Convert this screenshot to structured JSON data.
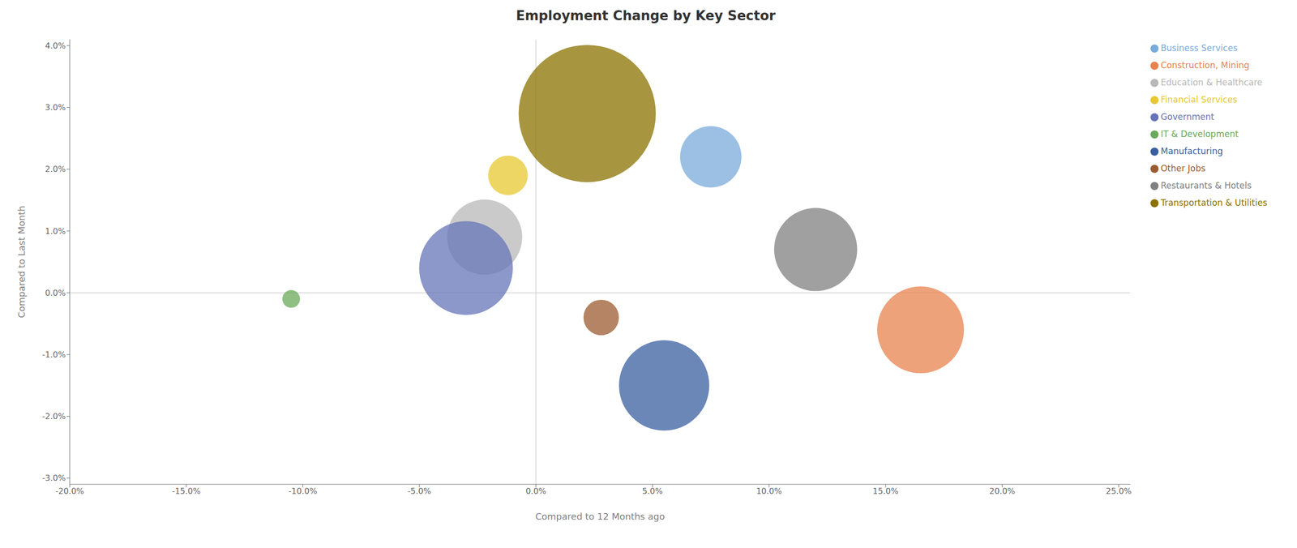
{
  "chart_data": {
    "type": "scatter",
    "title": "Employment Change by Key Sector",
    "xlabel": "Compared to 12 Months ago",
    "ylabel": "Compared to Last Month",
    "xlim": [
      -0.2,
      0.255
    ],
    "ylim": [
      -0.031,
      0.041
    ],
    "xticks": [
      {
        "value": -0.2,
        "label": "-20.0%"
      },
      {
        "value": -0.15,
        "label": "-15.0%"
      },
      {
        "value": -0.1,
        "label": "-10.0%"
      },
      {
        "value": -0.05,
        "label": "-5.0%"
      },
      {
        "value": 0.0,
        "label": "0.0%"
      },
      {
        "value": 0.05,
        "label": "5.0%"
      },
      {
        "value": 0.1,
        "label": "10.0%"
      },
      {
        "value": 0.15,
        "label": "15.0%"
      },
      {
        "value": 0.2,
        "label": "20.0%"
      },
      {
        "value": 0.25,
        "label": "25.0%"
      }
    ],
    "yticks": [
      {
        "value": -0.03,
        "label": "-3.0%"
      },
      {
        "value": -0.02,
        "label": "-2.0%"
      },
      {
        "value": -0.01,
        "label": "-1.0%"
      },
      {
        "value": 0.0,
        "label": "0.0%"
      },
      {
        "value": 0.01,
        "label": "1.0%"
      },
      {
        "value": 0.02,
        "label": "2.0%"
      },
      {
        "value": 0.03,
        "label": "3.0%"
      },
      {
        "value": 0.04,
        "label": "4.0%"
      }
    ],
    "grid": false,
    "legend": "right",
    "series": [
      {
        "name": "Business Services",
        "color": "#7aabda",
        "x": [
          0.075
        ],
        "values": [
          0.022
        ],
        "size": [
          6000
        ]
      },
      {
        "name": "Construction, Mining",
        "color": "#e8834d",
        "x": [
          0.165
        ],
        "values": [
          -0.006
        ],
        "size": [
          12000
        ]
      },
      {
        "name": "Education & Healthcare",
        "color": "#b8b8b8",
        "x": [
          -0.022
        ],
        "values": [
          0.009
        ],
        "size": [
          9000
        ]
      },
      {
        "name": "Financial Services",
        "color": "#e8c830",
        "x": [
          -0.012
        ],
        "values": [
          0.019
        ],
        "size": [
          2500
        ]
      },
      {
        "name": "Government",
        "color": "#6674b8",
        "x": [
          -0.03
        ],
        "values": [
          0.004
        ],
        "size": [
          14000
        ]
      },
      {
        "name": "IT & Development",
        "color": "#6aaa5a",
        "x": [
          -0.105
        ],
        "values": [
          -0.001
        ],
        "size": [
          500
        ]
      },
      {
        "name": "Manufacturing",
        "color": "#3a5fa0",
        "x": [
          0.055
        ],
        "values": [
          -0.015
        ],
        "size": [
          13000
        ]
      },
      {
        "name": "Other Jobs",
        "color": "#9b5b30",
        "x": [
          0.028
        ],
        "values": [
          -0.004
        ],
        "size": [
          2000
        ]
      },
      {
        "name": "Restaurants & Hotels",
        "color": "#808080",
        "x": [
          0.12
        ],
        "values": [
          0.007
        ],
        "size": [
          11000
        ]
      },
      {
        "name": "Transportation & Utilities",
        "color": "#8b7200",
        "x": [
          0.022
        ],
        "values": [
          0.029
        ],
        "size": [
          30000
        ]
      }
    ]
  }
}
